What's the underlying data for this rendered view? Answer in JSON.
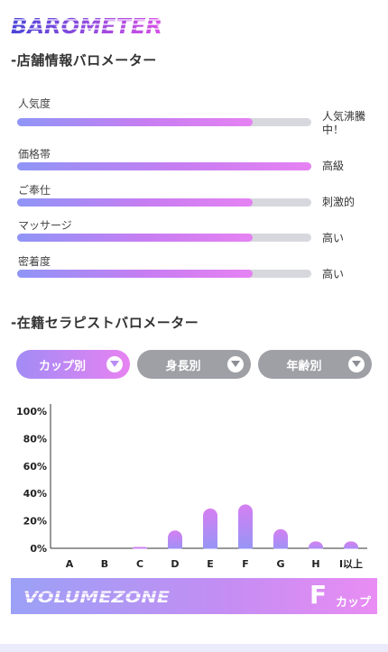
{
  "logo_text": "BAROMETER",
  "shop_section": {
    "title": "-店舗情報バロメーター",
    "meters": [
      {
        "label": "人気度",
        "level": 0.8,
        "value": "人気沸騰中！"
      },
      {
        "label": "価格帯",
        "level": 1.0,
        "value": "高級"
      },
      {
        "label": "ご奉仕",
        "level": 0.8,
        "value": "刺激的"
      },
      {
        "label": "マッサージ",
        "level": 0.8,
        "value": "高い"
      },
      {
        "label": "密着度",
        "level": 0.8,
        "value": "高い"
      }
    ]
  },
  "therapist_section": {
    "title": "-在籍セラピストバロメーター",
    "filters": [
      {
        "label": "カップ別",
        "active": true
      },
      {
        "label": "身長別",
        "active": false
      },
      {
        "label": "年齢別",
        "active": false
      }
    ]
  },
  "chart_data": {
    "type": "bar",
    "categories": [
      "A",
      "B",
      "C",
      "D",
      "E",
      "F",
      "G",
      "H",
      "I以上"
    ],
    "values": [
      0,
      0,
      1,
      13,
      29,
      32,
      14,
      5,
      5
    ],
    "ylim": [
      0,
      100
    ],
    "yticks": [
      "0%",
      "20%",
      "40%",
      "60%",
      "80%",
      "100%"
    ],
    "grid": false
  },
  "volume_zone": {
    "label": "VOLUMEZONE",
    "cup": "F",
    "unit": "カップ"
  },
  "colors": {
    "gradient_start": "#8f95f7",
    "gradient_end": "#e682f3",
    "active_pill_start": "#a28bf5",
    "active_pill_end": "#e783f2",
    "inactive_pill": "#9fa0a6",
    "track": "#d7d8de"
  },
  "icons": {
    "filter_toggle": "chevron-down-icon"
  }
}
